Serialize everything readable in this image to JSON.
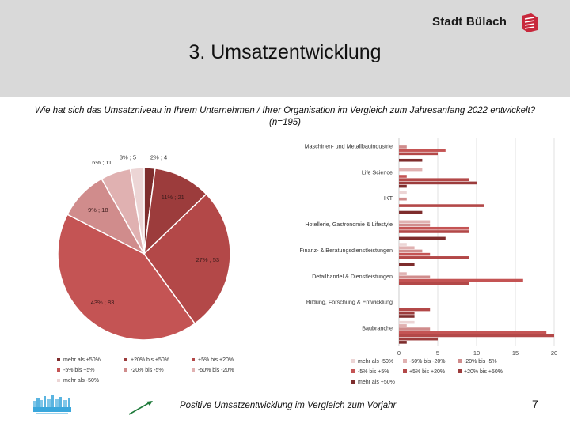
{
  "header": {
    "brand": "Stadt Bülach",
    "title": "3. Umsatzentwicklung"
  },
  "question": "Wie hat sich das Umsatzniveau in Ihrem Unternehmen / Ihrer Organisation im Vergleich zum Jahresanfang 2022 entwickelt? (n=195)",
  "footer": {
    "text": "Positive Umsatzentwicklung im Vergleich zum Vorjahr",
    "page_number": "7"
  },
  "colors": {
    "mehr als +50%": "#7e2d2d",
    "+20% bis +50%": "#9c3c3c",
    "+5% bis +20%": "#b34848",
    "-5% bis +5%": "#c45454",
    "-20% bis -5%": "#d08c8c",
    "-50% bis -20%": "#e0b1b1",
    "mehr als -50%": "#ecd5d5"
  },
  "chart_data": [
    {
      "type": "pie",
      "slices": [
        {
          "name": "mehr als +50%",
          "value": 4,
          "label": "2% ; 4"
        },
        {
          "name": "+20% bis +50%",
          "value": 21,
          "label": "11% ; 21"
        },
        {
          "name": "+5% bis +20%",
          "value": 53,
          "label": "27% ; 53"
        },
        {
          "name": "-5% bis +5%",
          "value": 83,
          "label": "43% ; 83"
        },
        {
          "name": "-20% bis -5%",
          "value": 18,
          "label": "9% ; 18"
        },
        {
          "name": "-50% bis -20%",
          "value": 11,
          "label": "6% ; 11"
        },
        {
          "name": "mehr als -50%",
          "value": 5,
          "label": "3% ; 5"
        }
      ],
      "legend": [
        "mehr als +50%",
        "+20% bis +50%",
        "+5% bis +20%",
        "-5% bis +5%",
        "-20% bis -5%",
        "-50% bis -20%",
        "mehr als -50%"
      ],
      "legend_position": "bottom"
    },
    {
      "type": "bar",
      "orientation": "horizontal",
      "categories": [
        "Maschinen- und Metallbauindustrie",
        "Life Science",
        "IKT",
        "Hotellerie, Gastronomie & Lifestyle",
        "Finanz- & Beratungsdienstleistungen",
        "Detailhandel & Dienstleistungen",
        "Bildung, Forschung & Entwicklung",
        "Baubranche"
      ],
      "series": [
        {
          "name": "mehr als -50%",
          "values": [
            0,
            0,
            1,
            0,
            1,
            0,
            0,
            2
          ]
        },
        {
          "name": "-50% bis -20%",
          "values": [
            0,
            3,
            0,
            4,
            2,
            1,
            0,
            1
          ]
        },
        {
          "name": "-20% bis -5%",
          "values": [
            1,
            0,
            1,
            4,
            3,
            4,
            0,
            4
          ]
        },
        {
          "name": "-5% bis +5%",
          "values": [
            6,
            1,
            0,
            9,
            4,
            16,
            0,
            19
          ]
        },
        {
          "name": "+5% bis +20%",
          "values": [
            5,
            9,
            11,
            9,
            9,
            9,
            4,
            20
          ]
        },
        {
          "name": "+20% bis +50%",
          "values": [
            0,
            10,
            0,
            0,
            0,
            0,
            2,
            5
          ]
        },
        {
          "name": "mehr als +50%",
          "values": [
            3,
            1,
            3,
            6,
            2,
            0,
            2,
            1
          ]
        }
      ],
      "xticks": [
        "0",
        "5",
        "10",
        "15",
        "20"
      ],
      "xlim": [
        0,
        20
      ],
      "grid": true,
      "legend": [
        "mehr als -50%",
        "-50% bis -20%",
        "-20% bis -5%",
        "-5% bis +5%",
        "+5% bis +20%",
        "+20% bis +50%",
        "mehr als +50%"
      ],
      "legend_position": "bottom"
    }
  ]
}
